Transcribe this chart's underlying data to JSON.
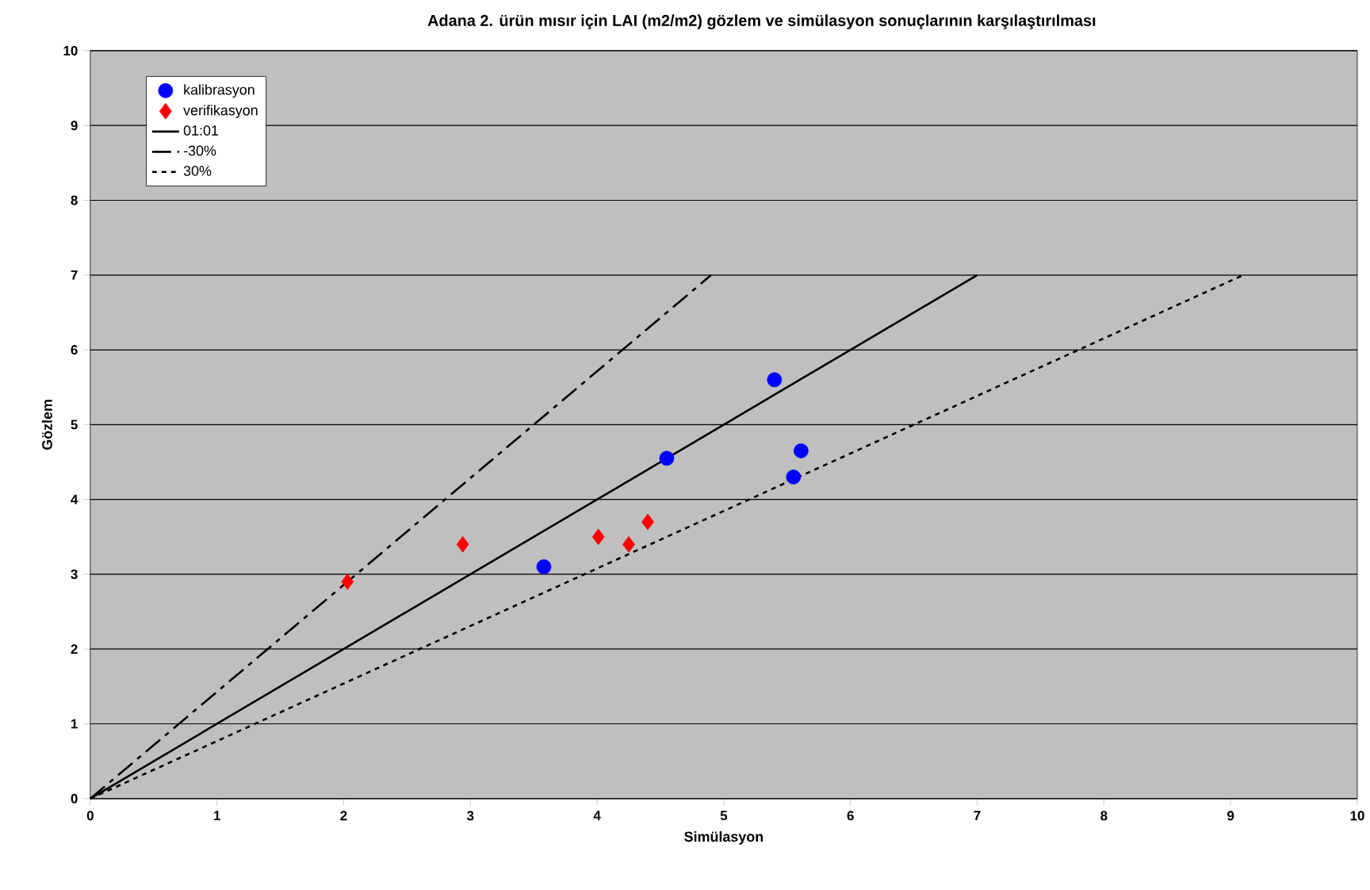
{
  "chart_data": {
    "type": "scatter",
    "title": "Adana 2. ürün mısır için LAI (m2/m2) gözlem ve simülasyon sonuçlarının karşılaştırılması",
    "xlabel": "Simülasyon",
    "ylabel": "Gözlem",
    "xlim": [
      0,
      10
    ],
    "ylim": [
      0,
      10
    ],
    "xticks": [
      0,
      1,
      2,
      3,
      4,
      5,
      6,
      7,
      8,
      9,
      10
    ],
    "yticks": [
      0,
      1,
      2,
      3,
      4,
      5,
      6,
      7,
      8,
      9,
      10
    ],
    "grid": "y",
    "legend": "top left",
    "series": [
      {
        "name": "kalibrasyon",
        "marker": "circle",
        "color": "#0000ff",
        "x": [
          3.58,
          4.55,
          5.4,
          5.61,
          5.55
        ],
        "values": [
          3.1,
          4.55,
          5.6,
          4.65,
          4.3
        ]
      },
      {
        "name": "verifikasyon",
        "marker": "diamond",
        "color": "#ff0000",
        "x": [
          2.03,
          2.94,
          4.01,
          4.25,
          4.4
        ],
        "values": [
          2.9,
          3.4,
          3.5,
          3.4,
          3.7
        ]
      },
      {
        "name": "01:01",
        "type": "line",
        "line_style": "solid",
        "color": "#000000",
        "x": [
          0,
          7
        ],
        "values": [
          0,
          7
        ]
      },
      {
        "name": "-30%",
        "type": "line",
        "line_style": "dashed",
        "color": "#000000",
        "x": [
          0,
          4.9
        ],
        "values": [
          0,
          7
        ]
      },
      {
        "name": "30%",
        "type": "line",
        "line_style": "dotted",
        "color": "#000000",
        "x": [
          0,
          9.1
        ],
        "values": [
          0,
          7
        ]
      }
    ]
  }
}
